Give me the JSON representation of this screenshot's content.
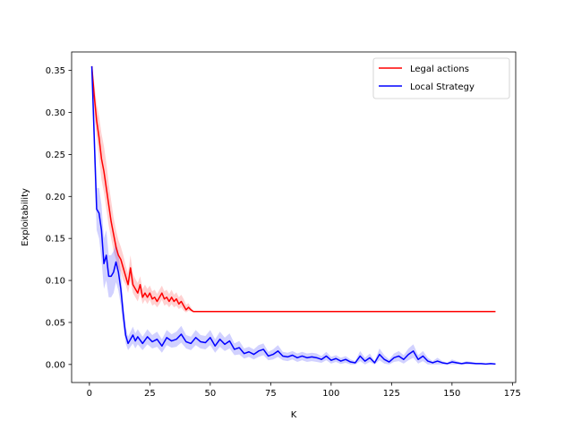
{
  "chart_data": {
    "type": "line",
    "title": "",
    "xlabel": "K",
    "ylabel": "Exploitability",
    "xlim": [
      -7.35,
      176.35
    ],
    "ylim": [
      -0.0215,
      0.372
    ],
    "xticks": [
      0,
      25,
      50,
      75,
      100,
      125,
      150,
      175
    ],
    "yticks": [
      0.0,
      0.05,
      0.1,
      0.15,
      0.2,
      0.25,
      0.3,
      0.35
    ],
    "xtick_labels": [
      "0",
      "25",
      "50",
      "75",
      "100",
      "125",
      "150",
      "175"
    ],
    "ytick_labels": [
      "0.00",
      "0.05",
      "0.10",
      "0.15",
      "0.20",
      "0.25",
      "0.30",
      "0.35"
    ],
    "grid": false,
    "legend_position": "top-right",
    "series": [
      {
        "name": "Legal actions",
        "color": "#ff0000",
        "band_color": "#ff0000",
        "x": [
          1,
          2,
          3,
          4,
          5,
          6,
          7,
          8,
          9,
          10,
          11,
          12,
          13,
          14,
          15,
          16,
          17,
          18,
          19,
          20,
          21,
          22,
          23,
          24,
          25,
          26,
          27,
          28,
          29,
          30,
          31,
          32,
          33,
          34,
          35,
          36,
          37,
          38,
          39,
          40,
          41,
          42,
          43,
          44,
          50,
          75,
          100,
          125,
          150,
          168
        ],
        "y": [
          0.355,
          0.32,
          0.29,
          0.27,
          0.245,
          0.23,
          0.21,
          0.19,
          0.17,
          0.155,
          0.14,
          0.13,
          0.125,
          0.115,
          0.105,
          0.095,
          0.115,
          0.095,
          0.09,
          0.085,
          0.095,
          0.08,
          0.085,
          0.08,
          0.085,
          0.078,
          0.08,
          0.075,
          0.08,
          0.085,
          0.078,
          0.08,
          0.075,
          0.08,
          0.075,
          0.078,
          0.072,
          0.075,
          0.07,
          0.065,
          0.068,
          0.065,
          0.063,
          0.063,
          0.063,
          0.063,
          0.063,
          0.063,
          0.063,
          0.063
        ],
        "lower": [
          0.355,
          0.3,
          0.27,
          0.245,
          0.22,
          0.205,
          0.185,
          0.165,
          0.15,
          0.135,
          0.125,
          0.115,
          0.11,
          0.1,
          0.095,
          0.085,
          0.1,
          0.085,
          0.08,
          0.075,
          0.085,
          0.072,
          0.077,
          0.072,
          0.077,
          0.07,
          0.072,
          0.068,
          0.072,
          0.077,
          0.07,
          0.072,
          0.068,
          0.072,
          0.068,
          0.07,
          0.066,
          0.068,
          0.064,
          0.062,
          0.064,
          0.063,
          0.063,
          0.063,
          0.063,
          0.063,
          0.063,
          0.063,
          0.063,
          0.063
        ],
        "upper": [
          0.355,
          0.335,
          0.31,
          0.295,
          0.275,
          0.26,
          0.24,
          0.215,
          0.195,
          0.175,
          0.16,
          0.148,
          0.14,
          0.13,
          0.118,
          0.108,
          0.13,
          0.108,
          0.102,
          0.097,
          0.105,
          0.09,
          0.095,
          0.09,
          0.094,
          0.087,
          0.089,
          0.084,
          0.089,
          0.094,
          0.087,
          0.089,
          0.084,
          0.089,
          0.083,
          0.086,
          0.08,
          0.083,
          0.078,
          0.071,
          0.073,
          0.068,
          0.064,
          0.063,
          0.063,
          0.063,
          0.063,
          0.063,
          0.063,
          0.063
        ]
      },
      {
        "name": "Local Strategy",
        "color": "#0000ff",
        "band_color": "#0000ff",
        "x": [
          1,
          2,
          3,
          4,
          5,
          6,
          7,
          8,
          9,
          10,
          11,
          12,
          13,
          14,
          15,
          16,
          17,
          18,
          19,
          20,
          22,
          24,
          26,
          28,
          30,
          32,
          34,
          36,
          38,
          40,
          42,
          44,
          46,
          48,
          50,
          52,
          54,
          56,
          58,
          60,
          62,
          64,
          66,
          68,
          70,
          72,
          74,
          76,
          78,
          80,
          82,
          84,
          86,
          88,
          90,
          92,
          94,
          96,
          98,
          100,
          102,
          104,
          106,
          108,
          110,
          112,
          114,
          116,
          118,
          120,
          122,
          124,
          126,
          128,
          130,
          132,
          134,
          136,
          138,
          140,
          142,
          144,
          146,
          148,
          150,
          152,
          154,
          156,
          158,
          160,
          162,
          164,
          166,
          168
        ],
        "y": [
          0.355,
          0.27,
          0.185,
          0.18,
          0.16,
          0.12,
          0.13,
          0.105,
          0.105,
          0.11,
          0.122,
          0.11,
          0.09,
          0.06,
          0.035,
          0.025,
          0.03,
          0.035,
          0.028,
          0.033,
          0.025,
          0.033,
          0.027,
          0.03,
          0.022,
          0.032,
          0.028,
          0.03,
          0.036,
          0.027,
          0.025,
          0.032,
          0.027,
          0.026,
          0.032,
          0.022,
          0.03,
          0.024,
          0.028,
          0.018,
          0.02,
          0.013,
          0.015,
          0.012,
          0.016,
          0.018,
          0.01,
          0.012,
          0.016,
          0.01,
          0.009,
          0.011,
          0.008,
          0.01,
          0.008,
          0.009,
          0.008,
          0.006,
          0.01,
          0.005,
          0.007,
          0.004,
          0.006,
          0.003,
          0.002,
          0.01,
          0.004,
          0.008,
          0.002,
          0.012,
          0.006,
          0.003,
          0.008,
          0.01,
          0.006,
          0.012,
          0.016,
          0.006,
          0.01,
          0.004,
          0.002,
          0.004,
          0.002,
          0.001,
          0.003,
          0.002,
          0.001,
          0.002,
          0.0015,
          0.001,
          0.001,
          0.0005,
          0.001,
          0.0005
        ],
        "lower": [
          0.355,
          0.24,
          0.16,
          0.15,
          0.125,
          0.09,
          0.1,
          0.08,
          0.08,
          0.085,
          0.098,
          0.088,
          0.07,
          0.045,
          0.025,
          0.017,
          0.021,
          0.025,
          0.019,
          0.024,
          0.017,
          0.024,
          0.019,
          0.021,
          0.014,
          0.023,
          0.02,
          0.021,
          0.026,
          0.019,
          0.017,
          0.023,
          0.019,
          0.018,
          0.023,
          0.014,
          0.021,
          0.016,
          0.019,
          0.011,
          0.012,
          0.007,
          0.009,
          0.006,
          0.009,
          0.011,
          0.005,
          0.006,
          0.009,
          0.005,
          0.004,
          0.006,
          0.003,
          0.005,
          0.003,
          0.004,
          0.003,
          0.002,
          0.005,
          0.001,
          0.003,
          0.0005,
          0.002,
          0.0,
          0.0,
          0.004,
          0.0,
          0.003,
          0.0,
          0.005,
          0.001,
          0.0,
          0.003,
          0.004,
          0.001,
          0.005,
          0.008,
          0.001,
          0.004,
          0.0,
          0.0,
          0.0,
          0.0,
          0.0,
          0.0,
          0.0,
          0.0,
          0.0,
          0.0,
          0.0,
          0.0,
          0.0,
          0.0,
          0.0
        ],
        "upper": [
          0.355,
          0.3,
          0.21,
          0.21,
          0.19,
          0.15,
          0.16,
          0.13,
          0.13,
          0.135,
          0.145,
          0.132,
          0.11,
          0.075,
          0.045,
          0.033,
          0.039,
          0.045,
          0.037,
          0.042,
          0.033,
          0.042,
          0.035,
          0.039,
          0.03,
          0.041,
          0.036,
          0.039,
          0.046,
          0.035,
          0.033,
          0.041,
          0.035,
          0.034,
          0.041,
          0.03,
          0.039,
          0.032,
          0.037,
          0.025,
          0.028,
          0.019,
          0.021,
          0.018,
          0.023,
          0.025,
          0.015,
          0.018,
          0.023,
          0.015,
          0.014,
          0.016,
          0.013,
          0.015,
          0.013,
          0.014,
          0.013,
          0.01,
          0.015,
          0.009,
          0.011,
          0.008,
          0.01,
          0.006,
          0.004,
          0.016,
          0.008,
          0.013,
          0.004,
          0.019,
          0.011,
          0.006,
          0.013,
          0.016,
          0.011,
          0.019,
          0.024,
          0.011,
          0.016,
          0.008,
          0.004,
          0.008,
          0.004,
          0.002,
          0.006,
          0.004,
          0.002,
          0.004,
          0.003,
          0.002,
          0.002,
          0.001,
          0.002,
          0.001
        ]
      }
    ]
  }
}
